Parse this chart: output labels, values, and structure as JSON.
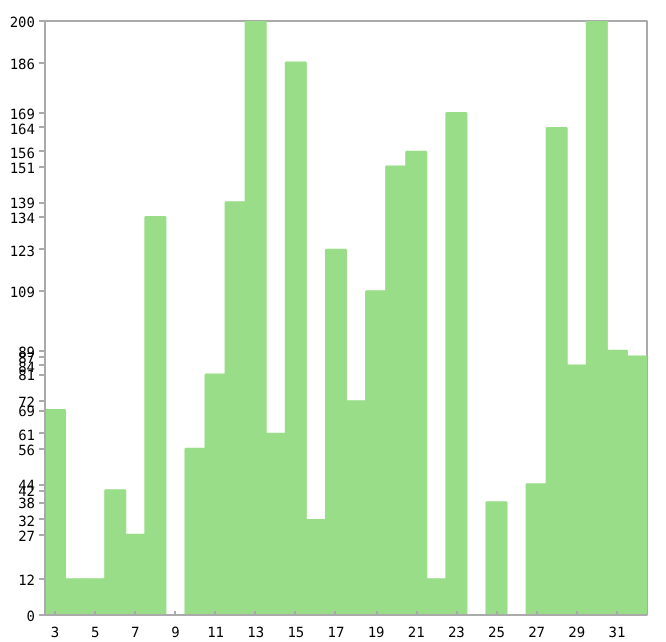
{
  "chart_data": {
    "type": "bar",
    "categories": [
      "3",
      null,
      "5",
      null,
      "7",
      null,
      "9",
      null,
      "11",
      null,
      "13",
      null,
      "15",
      null,
      "17",
      null,
      "19",
      null,
      "21",
      null,
      "23",
      null,
      "25",
      null,
      "27",
      null,
      "29",
      null,
      "31",
      null
    ],
    "values": [
      69,
      12,
      12,
      42,
      27,
      134,
      0,
      56,
      81,
      139,
      200,
      61,
      186,
      32,
      123,
      72,
      109,
      151,
      156,
      12,
      169,
      0,
      38,
      0,
      44,
      164,
      84,
      200,
      89,
      87
    ],
    "color": "#99dd88",
    "ylim": [
      0,
      200
    ],
    "yticks": [
      0,
      12,
      27,
      32,
      38,
      42,
      44,
      56,
      61,
      69,
      72,
      81,
      84,
      87,
      89,
      109,
      123,
      134,
      139,
      151,
      156,
      164,
      169,
      186,
      200
    ],
    "grid": false
  }
}
